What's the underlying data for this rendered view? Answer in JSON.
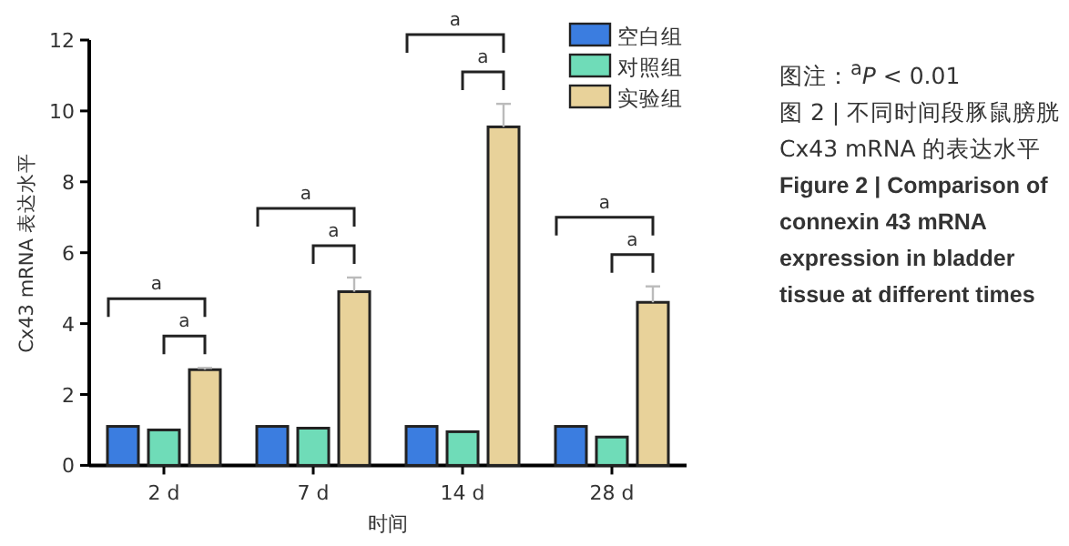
{
  "chart_data": {
    "type": "bar",
    "xlabel": "时间",
    "ylabel": "Cx43 mRNA 表达水平",
    "categories": [
      "2 d",
      "7 d",
      "14 d",
      "28 d"
    ],
    "series": [
      {
        "name": "空白组",
        "color": "#3b7de0",
        "values": [
          1.1,
          1.1,
          1.1,
          1.1
        ]
      },
      {
        "name": "对照组",
        "color": "#6fdcb8",
        "values": [
          1.0,
          1.05,
          0.95,
          0.8
        ]
      },
      {
        "name": "实验组",
        "color": "#e8d29a",
        "values": [
          2.7,
          4.9,
          9.55,
          4.6
        ],
        "errors": [
          0.05,
          0.4,
          0.65,
          0.45
        ]
      }
    ],
    "ylim": [
      0,
      12
    ],
    "yticks": [
      0,
      2,
      4,
      6,
      8,
      10,
      12
    ],
    "grid": false,
    "legend": "top right",
    "annotations": [
      "a",
      "a",
      "a",
      "a",
      "a",
      "a",
      "a",
      "a",
      "图注：$^{a}$*P* < 0.01",
      "图 2 | 不同时间段豚鼠膀胱 Cx43 mRNA 的表达水平",
      "Figure 2 | Comparison of connexin 43 mRNA expression in bladder tissue at different times"
    ]
  }
}
